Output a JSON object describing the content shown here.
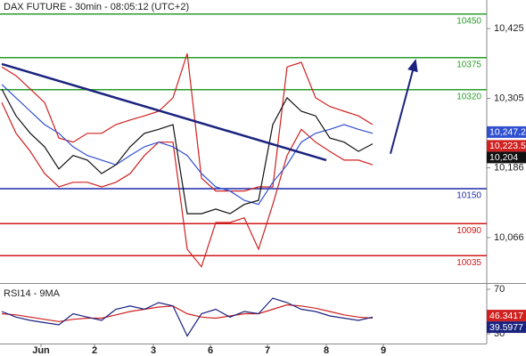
{
  "chart_data": [
    {
      "type": "line",
      "title": "DAX FUTURE - 30min - 08:05:12 (UTC+2)",
      "x": [
        0,
        4,
        8,
        12,
        16,
        20,
        24,
        28,
        32,
        36,
        40,
        44,
        48,
        52,
        56,
        60,
        64,
        68,
        72,
        76,
        80,
        84,
        88,
        92,
        96,
        100,
        104
      ],
      "xlim": [
        0,
        136
      ],
      "ylim": [
        9988,
        10474
      ],
      "yticks": [
        {
          "value": 10425,
          "label": "10,425"
        },
        {
          "value": 10305,
          "label": "10,305"
        },
        {
          "value": 10186,
          "label": "10,186"
        },
        {
          "value": 10066,
          "label": "10,066"
        }
      ],
      "series": [
        {
          "color": "#d02020",
          "values": [
            10359,
            10344,
            10321,
            10298,
            10237,
            10230,
            10245,
            10245,
            10260,
            10268,
            10275,
            10283,
            10306,
            10382,
            10168,
            10146,
            10146,
            10146,
            10153,
            10153,
            10359,
            10367,
            10306,
            10291,
            10283,
            10275,
            10260
          ]
        },
        {
          "color": "#d02020",
          "values": [
            10298,
            10245,
            10214,
            10176,
            10153,
            10161,
            10161,
            10153,
            10161,
            10176,
            10207,
            10230,
            10230,
            10046,
            10016,
            10092,
            10092,
            10100,
            10046,
            10123,
            10207,
            10252,
            10230,
            10214,
            10199,
            10199,
            10191
          ]
        },
        {
          "color": "#3050d0",
          "values": [
            10329,
            10306,
            10283,
            10260,
            10245,
            10222,
            10207,
            10199,
            10191,
            10207,
            10222,
            10230,
            10222,
            10207,
            10176,
            10153,
            10146,
            10130,
            10123,
            10161,
            10191,
            10230,
            10245,
            10252,
            10260,
            10252,
            10245
          ]
        },
        {
          "color": "#111111",
          "values": [
            10321,
            10275,
            10245,
            10222,
            10184,
            10207,
            10199,
            10176,
            10191,
            10222,
            10245,
            10252,
            10260,
            10107,
            10107,
            10115,
            10107,
            10123,
            10130,
            10260,
            10306,
            10283,
            10275,
            10237,
            10230,
            10214,
            10227
          ]
        }
      ],
      "levels": [
        {
          "value": 10450,
          "color": "#2a9d2a"
        },
        {
          "value": 10375,
          "color": "#2a9d2a"
        },
        {
          "value": 10320,
          "color": "#2a9d2a"
        },
        {
          "value": 10150,
          "color": "#1c2aa8"
        },
        {
          "value": 10090,
          "color": "#d01818"
        },
        {
          "value": 10035,
          "color": "#d01818"
        }
      ],
      "trendline": {
        "x": [
          0,
          91
        ],
        "y": [
          10364,
          10199
        ],
        "color": "#1a237e"
      },
      "arrow": {
        "x": [
          109,
          116
        ],
        "y": [
          10210,
          10370
        ],
        "color": "#1a237e"
      },
      "markers": {
        "values": [
          10247.2,
          10223.5,
          10204
        ],
        "value_labels": [
          "10,247.2",
          "10,223.5",
          "10,204"
        ],
        "colors": [
          "#3050d0",
          "#d02020",
          "#111111"
        ]
      }
    },
    {
      "type": "line",
      "title": "RSI14 - 9MA",
      "x": [
        0,
        4,
        8,
        12,
        16,
        20,
        24,
        28,
        32,
        36,
        40,
        44,
        48,
        52,
        56,
        60,
        64,
        68,
        72,
        76,
        80,
        84,
        88,
        92,
        96,
        100,
        104
      ],
      "xlim": [
        0,
        136
      ],
      "ylim": [
        22,
        74
      ],
      "yticks": [
        70,
        30
      ],
      "xticks": [
        {
          "value": 11,
          "label": "Jun"
        },
        {
          "value": 26,
          "label": "2"
        },
        {
          "value": 42.5,
          "label": "3"
        },
        {
          "value": 58.5,
          "label": "6"
        },
        {
          "value": 74.5,
          "label": "7"
        },
        {
          "value": 91,
          "label": "8"
        },
        {
          "value": 107,
          "label": "9"
        }
      ],
      "series": [
        {
          "color": "#d02020",
          "values": [
            48,
            47,
            45,
            43,
            41,
            43,
            44,
            44,
            47,
            50,
            52,
            54,
            55,
            48,
            45,
            44,
            46,
            48,
            48,
            52,
            56,
            55,
            53,
            50,
            47,
            45,
            44
          ]
        },
        {
          "color": "#1a237e",
          "values": [
            50,
            45,
            42,
            40,
            38,
            48,
            45,
            42,
            52,
            55,
            52,
            58,
            55,
            28,
            48,
            52,
            45,
            50,
            48,
            62,
            58,
            52,
            50,
            46,
            44,
            42,
            45
          ]
        }
      ],
      "markers": {
        "values": [
          46.3417,
          39.5977
        ],
        "colors": [
          "#d02020",
          "#1a237e"
        ]
      }
    }
  ]
}
